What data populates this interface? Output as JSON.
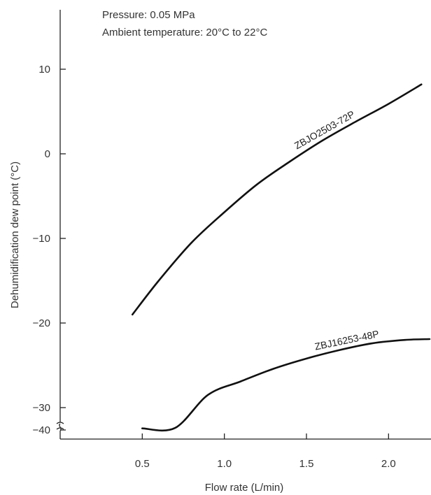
{
  "chart_data": {
    "type": "line",
    "title": "",
    "annotations": [
      "Pressure:  0.05 MPa",
      "Ambient temperature:  20°C to 22°C"
    ],
    "xlabel": "Flow rate (L/min)",
    "ylabel": "Dehumidification dew point (°C)",
    "x_ticks": [
      0.5,
      1.0,
      1.5,
      2.0
    ],
    "x_tick_labels": [
      "0.5",
      "1.0",
      "1.5",
      "2.0"
    ],
    "y_ticks": [
      10,
      0,
      -10,
      -20,
      -30,
      -40
    ],
    "y_tick_labels": [
      "10",
      "0",
      "−10",
      "−20",
      "−30",
      "−40"
    ],
    "xlim": [
      0.0,
      2.25
    ],
    "ylim": [
      -40,
      16
    ],
    "y_axis_break": "between −30 and −40",
    "grid": false,
    "legend": "none (series labeled inline)",
    "series": [
      {
        "name": "ZBJO2503-72P",
        "x": [
          0.44,
          0.6,
          0.8,
          1.0,
          1.2,
          1.4,
          1.6,
          1.8,
          2.0,
          2.2
        ],
        "y": [
          -19.0,
          -15.0,
          -10.5,
          -6.9,
          -3.6,
          -0.9,
          1.6,
          3.8,
          5.9,
          8.2
        ]
      },
      {
        "name": "ZBJ16253-48P",
        "x": [
          0.5,
          0.7,
          0.9,
          1.1,
          1.3,
          1.5,
          1.7,
          1.9,
          2.1,
          2.25
        ],
        "y": [
          -32.3,
          -30.3,
          -28.5,
          -26.9,
          -25.4,
          -24.2,
          -23.2,
          -22.4,
          -22.0,
          -21.9
        ]
      }
    ]
  }
}
